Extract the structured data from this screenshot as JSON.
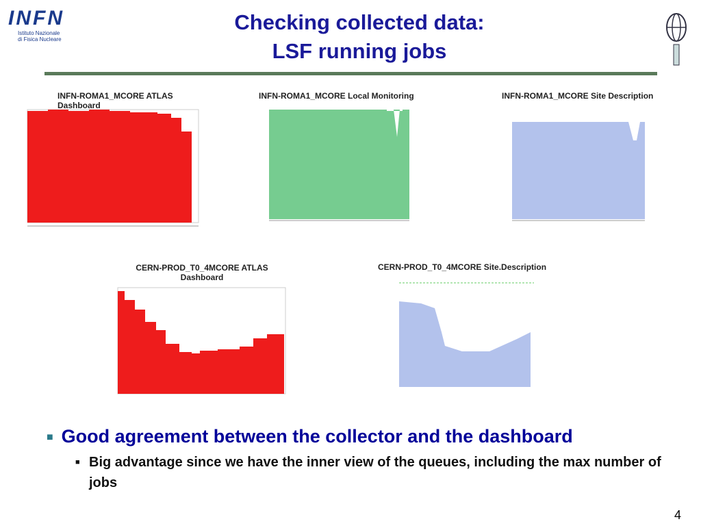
{
  "header": {
    "logo": {
      "name": "INFN",
      "subtitle": [
        "Istituto Nazionale",
        "di Fisica Nucleare"
      ]
    },
    "title": [
      "Checking collected data:",
      "LSF running jobs"
    ]
  },
  "panels": [
    {
      "label": "INFN-ROMA1_MCORE ATLAS Dashboard"
    },
    {
      "label": "INFN-ROMA1_MCORE Local Monitoring"
    },
    {
      "label": "INFN-ROMA1_MCORE Site Description"
    },
    {
      "label": "CERN-PROD_T0_4MCORE ATLAS Dashboard"
    },
    {
      "label": "CERN-PROD_T0_4MCORE Site.Description"
    }
  ],
  "bullets": [
    {
      "text": "Good agreement between the collector and the dashboard",
      "sub": [
        "Big advantage since we have the inner view of the queues, including the max number of jobs"
      ]
    }
  ],
  "page_number": "4"
}
